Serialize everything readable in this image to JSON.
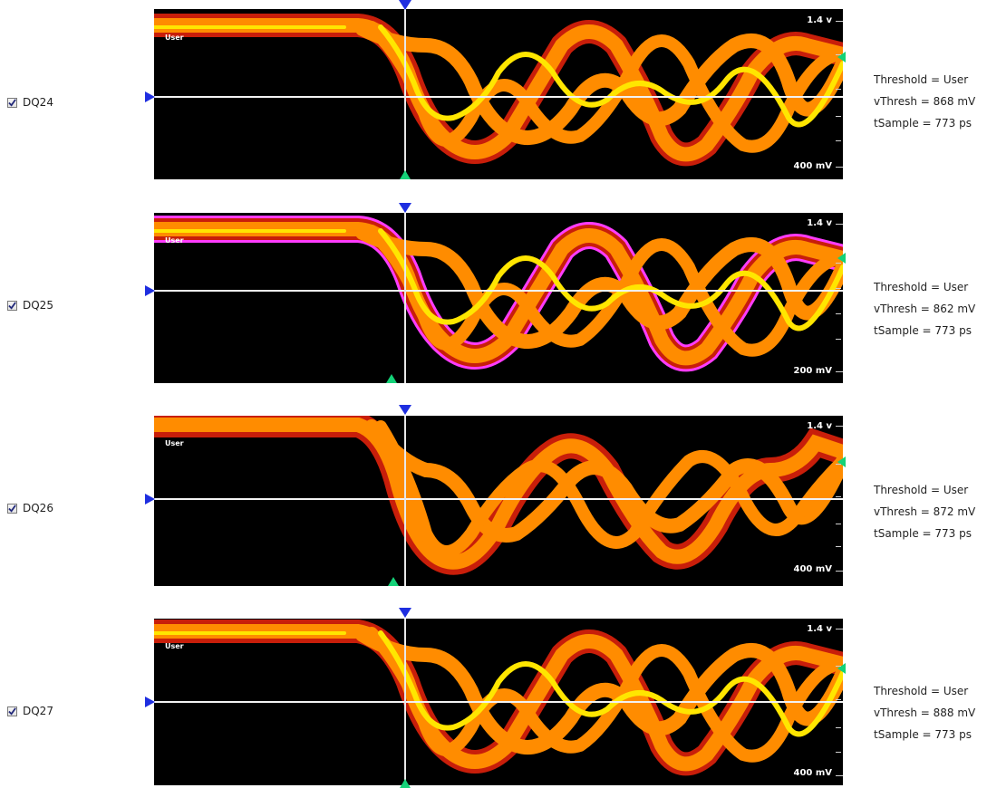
{
  "channels": [
    {
      "label": "DQ24",
      "checked": true,
      "user": "User",
      "top_scale": "1.4 v",
      "bottom_scale": "400 mV",
      "info": [
        "Threshold = User",
        "vThresh = 868 mV",
        "tSample = 773 ps"
      ]
    },
    {
      "label": "DQ25",
      "checked": true,
      "user": "User",
      "top_scale": "1.4 v",
      "bottom_scale": "200 mV",
      "info": [
        "Threshold = User",
        "vThresh = 862 mV",
        "tSample = 773 ps"
      ]
    },
    {
      "label": "DQ26",
      "checked": true,
      "user": "User",
      "top_scale": "1.4 v",
      "bottom_scale": "400 mV",
      "info": [
        "Threshold = User",
        "vThresh = 872 mV",
        "tSample = 773 ps"
      ]
    },
    {
      "label": "DQ27",
      "checked": true,
      "user": "User",
      "top_scale": "1.4 v",
      "bottom_scale": "400 mV",
      "info": [
        "Threshold = User",
        "vThresh = 888 mV",
        "tSample = 773 ps"
      ]
    }
  ],
  "colors": {
    "plot_bg": "#000000",
    "eye_dark": "#c81e0a",
    "eye_mid": "#ff8c00",
    "eye_bright": "#ffe600",
    "glitch": "#ff3cff",
    "cursor": "#1e2ee0",
    "sample_marker": "#14d278"
  }
}
